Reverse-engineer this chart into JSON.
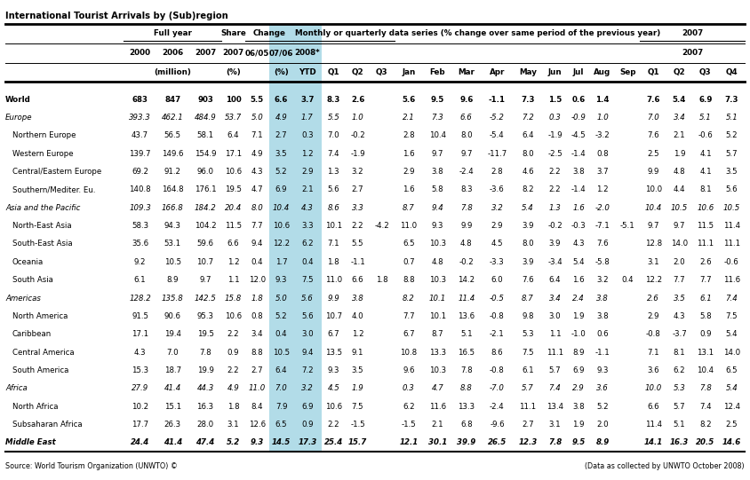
{
  "title": "International Tourist Arrivals by (Sub)region",
  "source_left": "Source: World Tourism Organization (UNWTO) ©",
  "source_right": "(Data as collected by UNWTO October 2008)",
  "rows": [
    [
      "World",
      "683",
      "847",
      "903",
      "100",
      "5.5",
      "6.6",
      "3.7",
      "8.3",
      "2.6",
      "",
      "5.6",
      "9.5",
      "9.6",
      "-1.1",
      "7.3",
      "1.5",
      "0.6",
      "1.4",
      "",
      "7.6",
      "5.4",
      "6.9",
      "7.3"
    ],
    [
      "Europe",
      "393.3",
      "462.1",
      "484.9",
      "53.7",
      "5.0",
      "4.9",
      "1.7",
      "5.5",
      "1.0",
      "",
      "2.1",
      "7.3",
      "6.6",
      "-5.2",
      "7.2",
      "0.3",
      "-0.9",
      "1.0",
      "",
      "7.0",
      "3.4",
      "5.1",
      "5.1"
    ],
    [
      "  Northern Europe",
      "43.7",
      "56.5",
      "58.1",
      "6.4",
      "7.1",
      "2.7",
      "0.3",
      "7.0",
      "-0.2",
      "",
      "2.8",
      "10.4",
      "8.0",
      "-5.4",
      "6.4",
      "-1.9",
      "-4.5",
      "-3.2",
      "",
      "7.6",
      "2.1",
      "-0.6",
      "5.2"
    ],
    [
      "  Western Europe",
      "139.7",
      "149.6",
      "154.9",
      "17.1",
      "4.9",
      "3.5",
      "1.2",
      "7.4",
      "-1.9",
      "",
      "1.6",
      "9.7",
      "9.7",
      "-11.7",
      "8.0",
      "-2.5",
      "-1.4",
      "0.8",
      "",
      "2.5",
      "1.9",
      "4.1",
      "5.7"
    ],
    [
      "  Central/Eastern Europe",
      "69.2",
      "91.2",
      "96.0",
      "10.6",
      "4.3",
      "5.2",
      "2.9",
      "1.3",
      "3.2",
      "",
      "2.9",
      "3.8",
      "-2.4",
      "2.8",
      "4.6",
      "2.2",
      "3.8",
      "3.7",
      "",
      "9.9",
      "4.8",
      "4.1",
      "3.5"
    ],
    [
      "  Southern/Mediter. Eu.",
      "140.8",
      "164.8",
      "176.1",
      "19.5",
      "4.7",
      "6.9",
      "2.1",
      "5.6",
      "2.7",
      "",
      "1.6",
      "5.8",
      "8.3",
      "-3.6",
      "8.2",
      "2.2",
      "-1.4",
      "1.2",
      "",
      "10.0",
      "4.4",
      "8.1",
      "5.6"
    ],
    [
      "Asia and the Pacific",
      "109.3",
      "166.8",
      "184.2",
      "20.4",
      "8.0",
      "10.4",
      "4.3",
      "8.6",
      "3.3",
      "",
      "8.7",
      "9.4",
      "7.8",
      "3.2",
      "5.4",
      "1.3",
      "1.6",
      "-2.0",
      "",
      "10.4",
      "10.5",
      "10.6",
      "10.5"
    ],
    [
      "  North-East Asia",
      "58.3",
      "94.3",
      "104.2",
      "11.5",
      "7.7",
      "10.6",
      "3.3",
      "10.1",
      "2.2",
      "-4.2",
      "11.0",
      "9.3",
      "9.9",
      "2.9",
      "3.9",
      "-0.2",
      "-0.3",
      "-7.1",
      "-5.1",
      "9.7",
      "9.7",
      "11.5",
      "11.4"
    ],
    [
      "  South-East Asia",
      "35.6",
      "53.1",
      "59.6",
      "6.6",
      "9.4",
      "12.2",
      "6.2",
      "7.1",
      "5.5",
      "",
      "6.5",
      "10.3",
      "4.8",
      "4.5",
      "8.0",
      "3.9",
      "4.3",
      "7.6",
      "",
      "12.8",
      "14.0",
      "11.1",
      "11.1"
    ],
    [
      "  Oceania",
      "9.2",
      "10.5",
      "10.7",
      "1.2",
      "0.4",
      "1.7",
      "0.4",
      "1.8",
      "-1.1",
      "",
      "0.7",
      "4.8",
      "-0.2",
      "-3.3",
      "3.9",
      "-3.4",
      "5.4",
      "-5.8",
      "",
      "3.1",
      "2.0",
      "2.6",
      "-0.6"
    ],
    [
      "  South Asia",
      "6.1",
      "8.9",
      "9.7",
      "1.1",
      "12.0",
      "9.3",
      "7.5",
      "11.0",
      "6.6",
      "1.8",
      "8.8",
      "10.3",
      "14.2",
      "6.0",
      "7.6",
      "6.4",
      "1.6",
      "3.2",
      "0.4",
      "12.2",
      "7.7",
      "7.7",
      "11.6"
    ],
    [
      "Americas",
      "128.2",
      "135.8",
      "142.5",
      "15.8",
      "1.8",
      "5.0",
      "5.6",
      "9.9",
      "3.8",
      "",
      "8.2",
      "10.1",
      "11.4",
      "-0.5",
      "8.7",
      "3.4",
      "2.4",
      "3.8",
      "",
      "2.6",
      "3.5",
      "6.1",
      "7.4"
    ],
    [
      "  North America",
      "91.5",
      "90.6",
      "95.3",
      "10.6",
      "0.8",
      "5.2",
      "5.6",
      "10.7",
      "4.0",
      "",
      "7.7",
      "10.1",
      "13.6",
      "-0.8",
      "9.8",
      "3.0",
      "1.9",
      "3.8",
      "",
      "2.9",
      "4.3",
      "5.8",
      "7.5"
    ],
    [
      "  Caribbean",
      "17.1",
      "19.4",
      "19.5",
      "2.2",
      "3.4",
      "0.4",
      "3.0",
      "6.7",
      "1.2",
      "",
      "6.7",
      "8.7",
      "5.1",
      "-2.1",
      "5.3",
      "1.1",
      "-1.0",
      "0.6",
      "",
      "-0.8",
      "-3.7",
      "0.9",
      "5.4"
    ],
    [
      "  Central America",
      "4.3",
      "7.0",
      "7.8",
      "0.9",
      "8.8",
      "10.5",
      "9.4",
      "13.5",
      "9.1",
      "",
      "10.8",
      "13.3",
      "16.5",
      "8.6",
      "7.5",
      "11.1",
      "8.9",
      "-1.1",
      "",
      "7.1",
      "8.1",
      "13.1",
      "14.0"
    ],
    [
      "  South America",
      "15.3",
      "18.7",
      "19.9",
      "2.2",
      "2.7",
      "6.4",
      "7.2",
      "9.3",
      "3.5",
      "",
      "9.6",
      "10.3",
      "7.8",
      "-0.8",
      "6.1",
      "5.7",
      "6.9",
      "9.3",
      "",
      "3.6",
      "6.2",
      "10.4",
      "6.5"
    ],
    [
      "Africa",
      "27.9",
      "41.4",
      "44.3",
      "4.9",
      "11.0",
      "7.0",
      "3.2",
      "4.5",
      "1.9",
      "",
      "0.3",
      "4.7",
      "8.8",
      "-7.0",
      "5.7",
      "7.4",
      "2.9",
      "3.6",
      "",
      "10.0",
      "5.3",
      "7.8",
      "5.4"
    ],
    [
      "  North Africa",
      "10.2",
      "15.1",
      "16.3",
      "1.8",
      "8.4",
      "7.9",
      "6.9",
      "10.6",
      "7.5",
      "",
      "6.2",
      "11.6",
      "13.3",
      "-2.4",
      "11.1",
      "13.4",
      "3.8",
      "5.2",
      "",
      "6.6",
      "5.7",
      "7.4",
      "12.4"
    ],
    [
      "  Subsaharan Africa",
      "17.7",
      "26.3",
      "28.0",
      "3.1",
      "12.6",
      "6.5",
      "0.9",
      "2.2",
      "-1.5",
      "",
      "-1.5",
      "2.1",
      "6.8",
      "-9.6",
      "2.7",
      "3.1",
      "1.9",
      "2.0",
      "",
      "11.4",
      "5.1",
      "8.2",
      "2.5"
    ],
    [
      "Middle East",
      "24.4",
      "41.4",
      "47.4",
      "5.2",
      "9.3",
      "14.5",
      "17.3",
      "25.4",
      "15.7",
      "",
      "12.1",
      "30.1",
      "39.9",
      "26.5",
      "12.3",
      "7.8",
      "9.5",
      "8.9",
      "",
      "14.1",
      "16.3",
      "20.5",
      "14.6"
    ]
  ],
  "italic_rows": [
    1,
    6,
    11,
    16,
    19
  ],
  "bold_rows": [
    0
  ],
  "last_row_bold_italic": [
    19
  ],
  "background_color": "#ffffff",
  "highlight_color": "#b2dce8"
}
